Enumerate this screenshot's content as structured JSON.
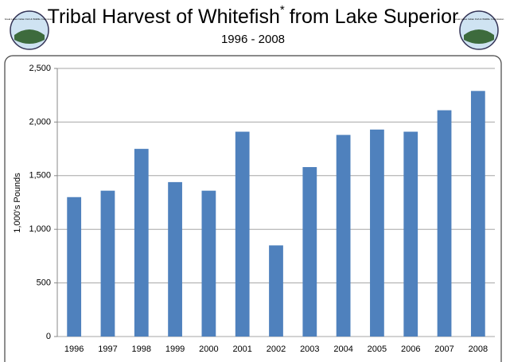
{
  "chart_data": {
    "type": "bar",
    "title": "Tribal Harvest of Whitefish",
    "title_mark": "*",
    "title_rest": "from Lake Superior",
    "subtitle": "1996 - 2008",
    "logo_text": "Great Lakes Indian Fish & Wildlife Commission",
    "y_label": "1,000's Pounds",
    "categories": [
      "1996",
      "1997",
      "1998",
      "1999",
      "2000",
      "2001",
      "2002",
      "2003",
      "2004",
      "2005",
      "2006",
      "2007",
      "2008"
    ],
    "values": [
      1300,
      1360,
      1750,
      1440,
      1360,
      1910,
      850,
      1580,
      1880,
      1930,
      1910,
      2110,
      2290
    ],
    "color": "#4f81bd",
    "ylim": [
      0,
      2500
    ],
    "yticks": [
      0,
      500,
      {
        "value": 1000,
        "label": "1,000"
      },
      {
        "value": 1500,
        "label": "1,500"
      },
      {
        "value": 2000,
        "label": "2,000"
      },
      {
        "value": 2500,
        "label": "2,500"
      }
    ],
    "grid": true
  }
}
